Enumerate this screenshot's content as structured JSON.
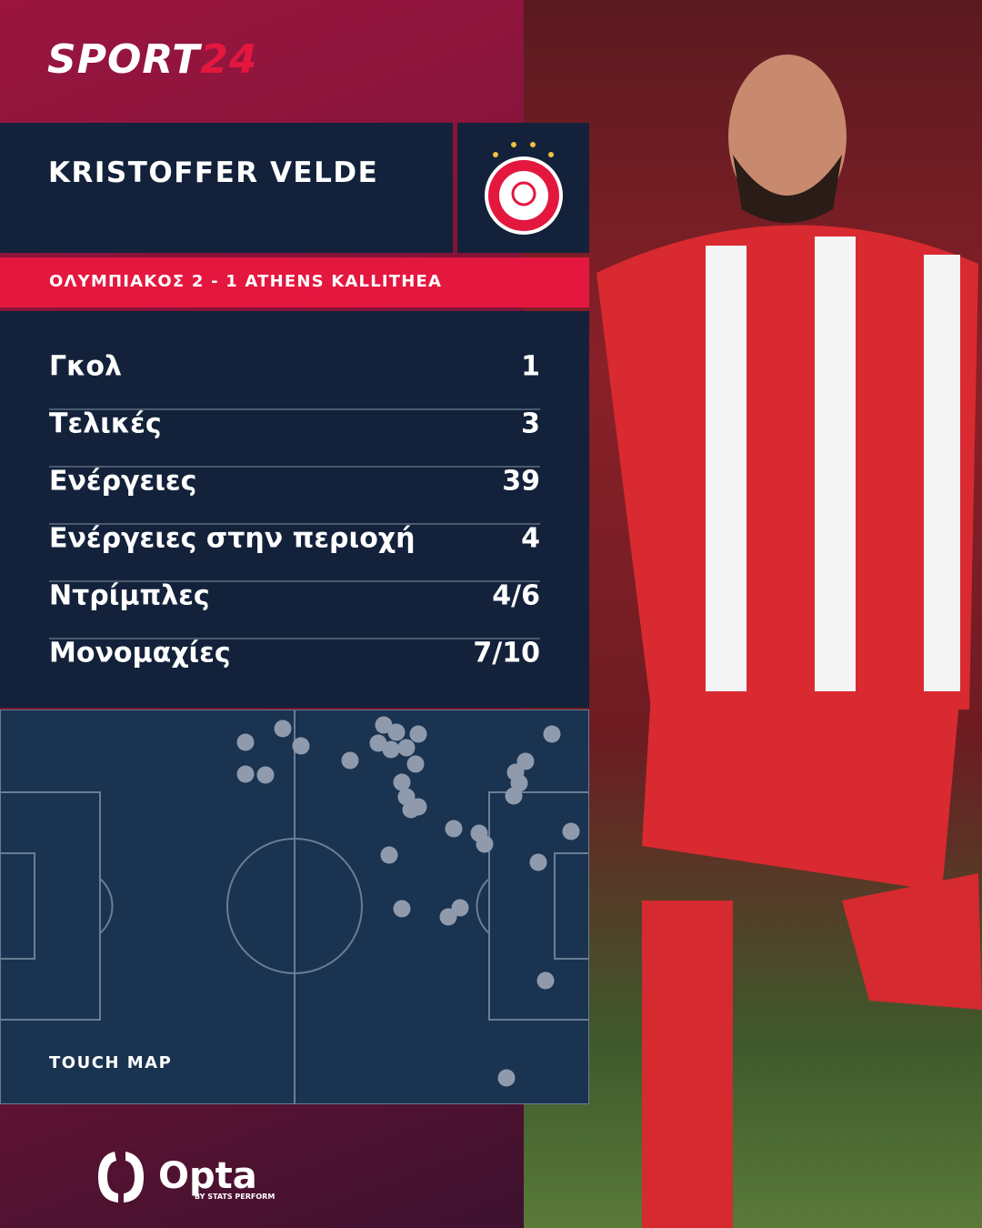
{
  "brand": {
    "name": "SPORT",
    "suffix": "24"
  },
  "player": {
    "name": "KRISTOFFER VELDE"
  },
  "match": {
    "line": "ΟΛΥΜΠΙΑΚΟΣ 2 - 1 ATHENS KALLITHEA"
  },
  "stats": {
    "rows": [
      [
        "Γκολ",
        "1"
      ],
      [
        "Τελικές",
        "3"
      ],
      [
        "Ενέργειες",
        "39"
      ],
      [
        "Ενέργειες στην περιοχή",
        "4"
      ],
      [
        "Ντρίμπλες",
        "4/6"
      ],
      [
        "Μονομαχίες",
        "7/10"
      ]
    ]
  },
  "touch_map": {
    "title": "TOUCH MAP"
  },
  "footer": {
    "logo": "Opta",
    "byline": "BY STATS PERFORM"
  }
}
